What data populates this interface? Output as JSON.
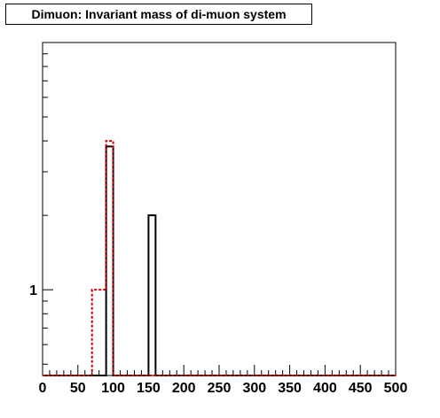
{
  "chart_data": {
    "type": "bar",
    "title": "Dimuon: Invariant mass of di-muon system",
    "xlabel": "",
    "ylabel": "",
    "xlim": [
      0,
      500
    ],
    "log_y": true,
    "ylim": [
      0.45,
      10
    ],
    "x_tick_labels": [
      "0",
      "50",
      "100",
      "150",
      "200",
      "250",
      "300",
      "350",
      "400",
      "450",
      "500"
    ],
    "y_tick_labels": [
      "1"
    ],
    "bin_width": 10,
    "grid": false,
    "legend": "none",
    "series": [
      {
        "style": "solid-black",
        "color": "#000000",
        "bins": [
          {
            "x": [
              90,
              100
            ],
            "y": 3.8
          },
          {
            "x": [
              150,
              160
            ],
            "y": 2.0
          }
        ]
      },
      {
        "style": "dashed-red",
        "color": "#d40000",
        "bins": [
          {
            "x": [
              70,
              90
            ],
            "y": 1.0
          },
          {
            "x": [
              90,
              100
            ],
            "y": 4.0
          }
        ]
      }
    ]
  }
}
